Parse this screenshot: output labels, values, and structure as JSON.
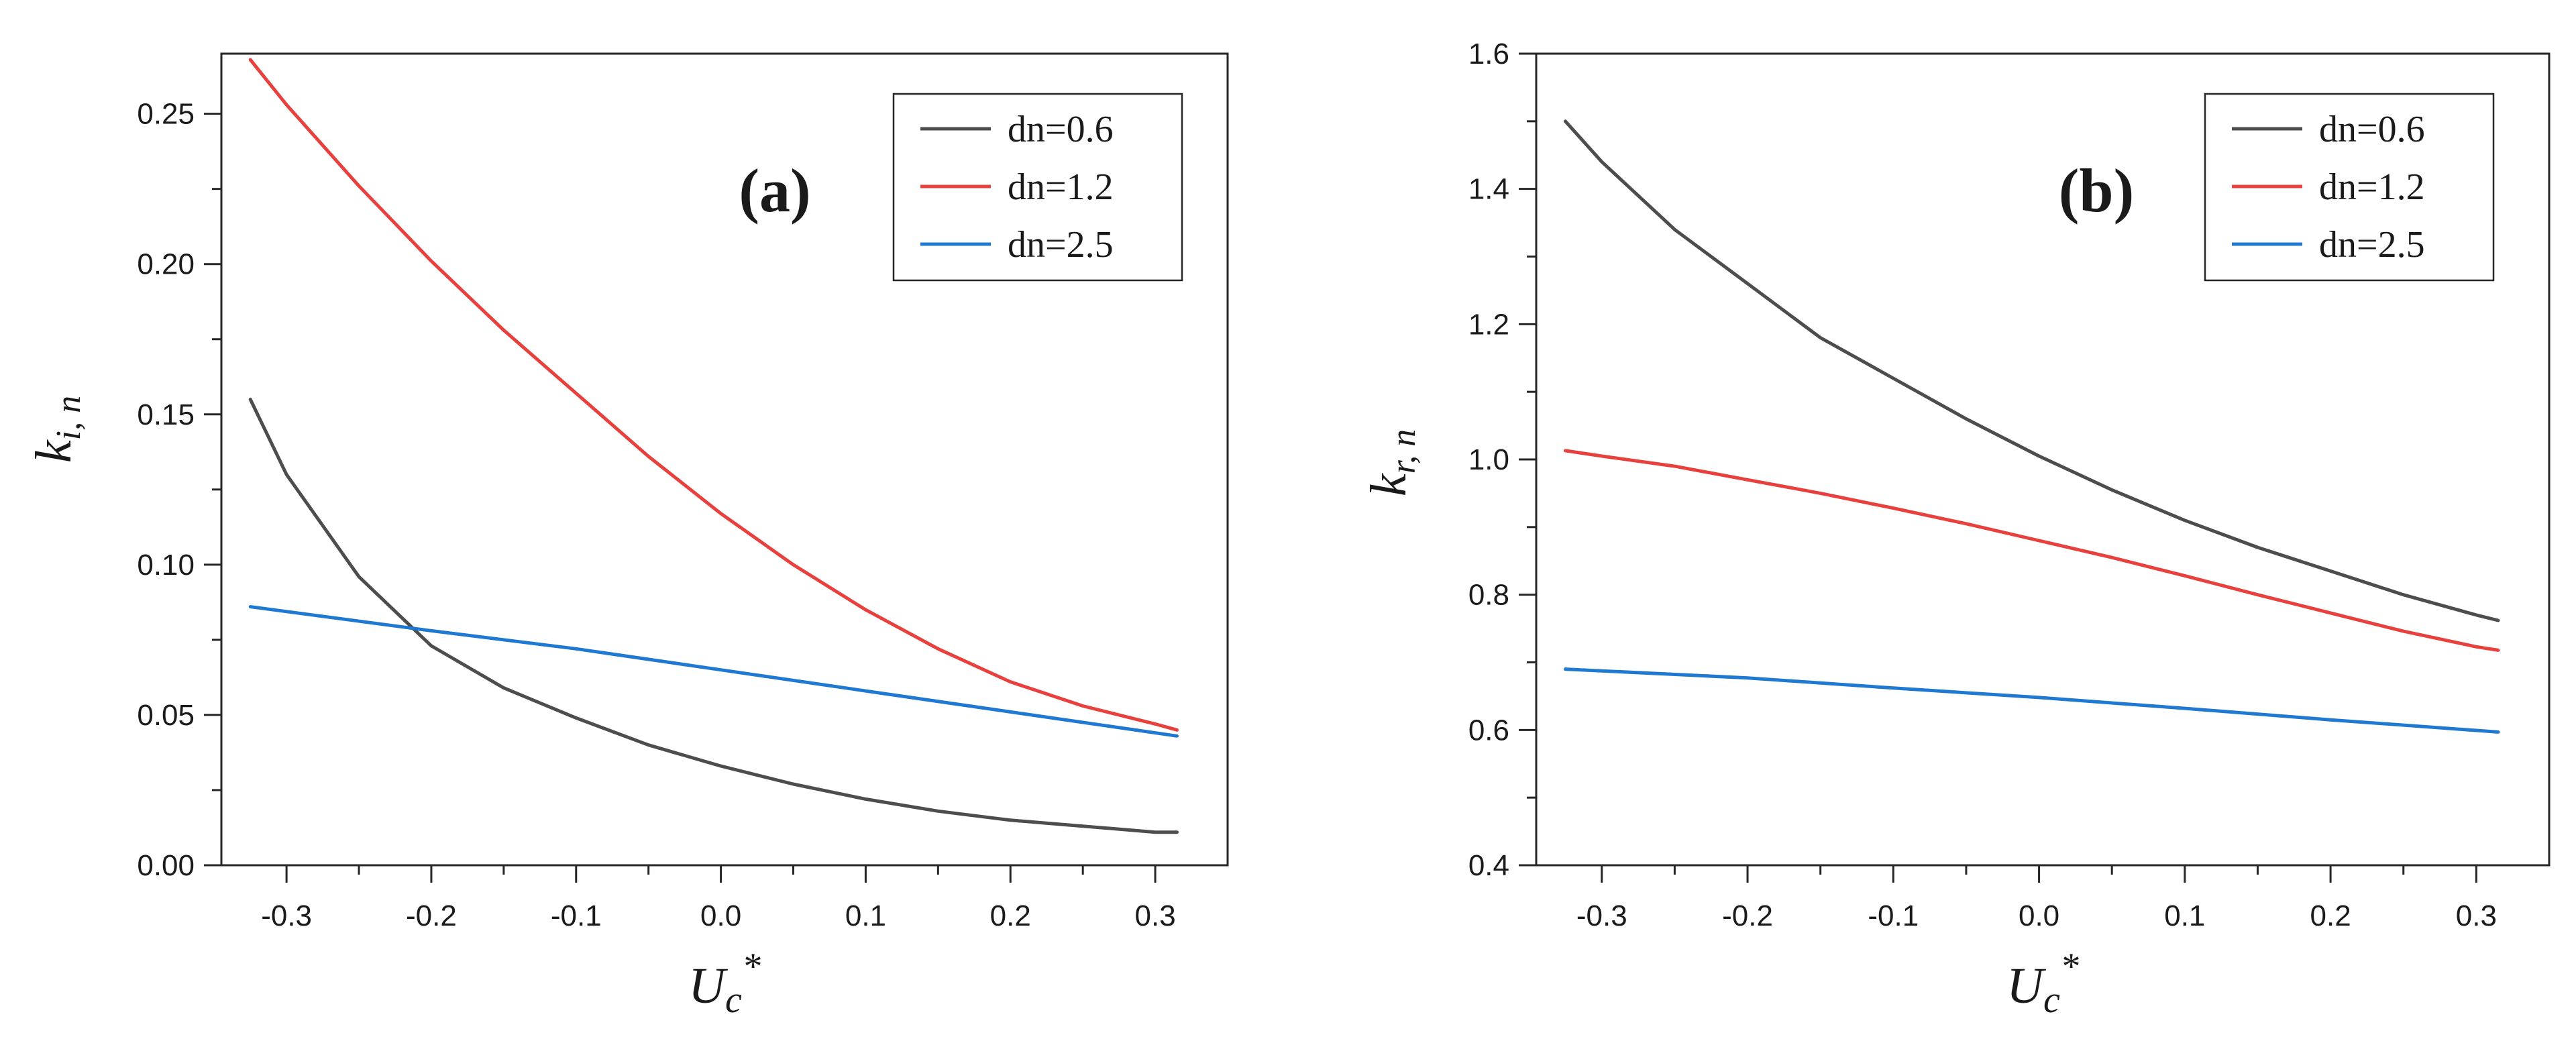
{
  "chart_data": [
    {
      "type": "line",
      "panel_label": "(a)",
      "xlabel": "U",
      "xlabel_sub": "c",
      "xlabel_sup": "*",
      "ylabel": "k",
      "ylabel_sub": "i, n",
      "xlim": [
        -0.345,
        0.35
      ],
      "ylim": [
        0.0,
        0.27
      ],
      "x_ticks": [
        -0.3,
        -0.2,
        -0.1,
        0.0,
        0.1,
        0.2,
        0.3
      ],
      "x_tick_labels": [
        "-0.3",
        "-0.2",
        "-0.1",
        "0.0",
        "0.1",
        "0.2",
        "0.3"
      ],
      "y_ticks": [
        0.0,
        0.05,
        0.1,
        0.15,
        0.2,
        0.25
      ],
      "y_tick_labels": [
        "0.00",
        "0.05",
        "0.10",
        "0.15",
        "0.20",
        "0.25"
      ],
      "legend_position": "top-right",
      "series": [
        {
          "name": "dn=0.6",
          "color": "#4d4d4d",
          "x": [
            -0.325,
            -0.3,
            -0.25,
            -0.2,
            -0.15,
            -0.1,
            -0.05,
            0.0,
            0.05,
            0.1,
            0.15,
            0.2,
            0.25,
            0.3,
            0.315
          ],
          "y": [
            0.155,
            0.13,
            0.096,
            0.073,
            0.059,
            0.049,
            0.04,
            0.033,
            0.027,
            0.022,
            0.018,
            0.015,
            0.013,
            0.011,
            0.011
          ]
        },
        {
          "name": "dn=1.2",
          "color": "#e8403d",
          "x": [
            -0.325,
            -0.3,
            -0.25,
            -0.2,
            -0.15,
            -0.1,
            -0.05,
            0.0,
            0.05,
            0.1,
            0.15,
            0.2,
            0.25,
            0.3,
            0.315
          ],
          "y": [
            0.268,
            0.253,
            0.226,
            0.201,
            0.178,
            0.157,
            0.136,
            0.117,
            0.1,
            0.085,
            0.072,
            0.061,
            0.053,
            0.047,
            0.045
          ]
        },
        {
          "name": "dn=2.5",
          "color": "#1f78d1",
          "x": [
            -0.325,
            -0.2,
            -0.1,
            0.0,
            0.1,
            0.2,
            0.315
          ],
          "y": [
            0.086,
            0.078,
            0.072,
            0.065,
            0.058,
            0.051,
            0.043
          ]
        }
      ]
    },
    {
      "type": "line",
      "panel_label": "(b)",
      "xlabel": "U",
      "xlabel_sub": "c",
      "xlabel_sup": "*",
      "ylabel": "k",
      "ylabel_sub": "r, n",
      "xlim": [
        -0.345,
        0.35
      ],
      "ylim": [
        0.4,
        1.6
      ],
      "x_ticks": [
        -0.3,
        -0.2,
        -0.1,
        0.0,
        0.1,
        0.2,
        0.3
      ],
      "x_tick_labels": [
        "-0.3",
        "-0.2",
        "-0.1",
        "0.0",
        "0.1",
        "0.2",
        "0.3"
      ],
      "y_ticks": [
        0.4,
        0.6,
        0.8,
        1.0,
        1.2,
        1.4,
        1.6
      ],
      "y_tick_labels": [
        "0.4",
        "0.6",
        "0.8",
        "1.0",
        "1.2",
        "1.4",
        "1.6"
      ],
      "legend_position": "top-right",
      "series": [
        {
          "name": "dn=0.6",
          "color": "#4d4d4d",
          "x": [
            -0.325,
            -0.3,
            -0.25,
            -0.2,
            -0.15,
            -0.1,
            -0.05,
            0.0,
            0.05,
            0.1,
            0.15,
            0.2,
            0.25,
            0.3,
            0.315
          ],
          "y": [
            1.5,
            1.44,
            1.34,
            1.26,
            1.18,
            1.12,
            1.06,
            1.005,
            0.955,
            0.91,
            0.87,
            0.835,
            0.8,
            0.77,
            0.762
          ]
        },
        {
          "name": "dn=1.2",
          "color": "#e8403d",
          "x": [
            -0.325,
            -0.3,
            -0.25,
            -0.2,
            -0.15,
            -0.1,
            -0.05,
            0.0,
            0.05,
            0.1,
            0.15,
            0.2,
            0.25,
            0.3,
            0.315
          ],
          "y": [
            1.013,
            1.005,
            0.99,
            0.97,
            0.95,
            0.928,
            0.905,
            0.88,
            0.855,
            0.828,
            0.8,
            0.773,
            0.746,
            0.723,
            0.718
          ]
        },
        {
          "name": "dn=2.5",
          "color": "#1f78d1",
          "x": [
            -0.325,
            -0.2,
            -0.1,
            0.0,
            0.1,
            0.2,
            0.315
          ],
          "y": [
            0.69,
            0.677,
            0.662,
            0.648,
            0.632,
            0.615,
            0.597
          ]
        }
      ]
    }
  ]
}
